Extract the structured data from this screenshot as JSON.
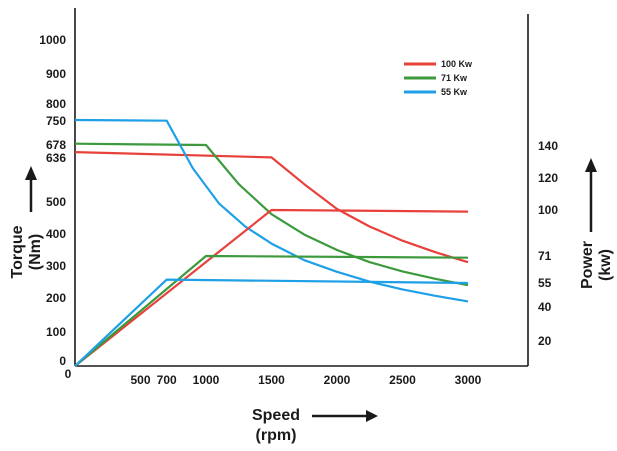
{
  "chart_data": {
    "type": "line",
    "xlabel": "Speed",
    "xlabel_unit": "(rpm)",
    "ylabel_left": "Torque",
    "ylabel_left_unit": "(Nm)",
    "ylabel_right": "Power",
    "ylabel_right_unit": "(kw)",
    "x_ticks": [
      "0",
      "500",
      "700",
      "1000",
      "1500",
      "2000",
      "2500",
      "3000"
    ],
    "x_tick_values": [
      0,
      500,
      700,
      1000,
      1500,
      2000,
      2500,
      3000
    ],
    "left_ticks": [
      "0",
      "100",
      "200",
      "300",
      "400",
      "500",
      "636",
      "678",
      "750",
      "800",
      "900",
      "1000"
    ],
    "left_tick_values": [
      0,
      100,
      200,
      300,
      400,
      500,
      636,
      678,
      750,
      800,
      900,
      1000
    ],
    "right_ticks": [
      "20",
      "40",
      "55",
      "71",
      "100",
      "120",
      "140"
    ],
    "right_tick_values": [
      20,
      40,
      55,
      71,
      100,
      120,
      140
    ],
    "legend_position": "top-right",
    "colors": {
      "100 Kw": "#e8403a",
      "71 Kw": "#3c9a3c",
      "55 Kw": "#1fa0e6"
    },
    "series": [
      {
        "name": "100 Kw",
        "axis": "torque",
        "x": [
          0,
          1500,
          1750,
          2000,
          2250,
          2500,
          2750,
          3000
        ],
        "y": [
          655,
          638,
          555,
          478,
          423,
          379,
          343,
          312
        ]
      },
      {
        "name": "71 Kw",
        "axis": "torque",
        "x": [
          0,
          1000,
          1250,
          1500,
          1750,
          2000,
          2250,
          2500,
          2750,
          3000
        ],
        "y": [
          682,
          678,
          555,
          462,
          398,
          350,
          312,
          283,
          260,
          240
        ]
      },
      {
        "name": "55 Kw",
        "axis": "torque",
        "x": [
          0,
          700,
          900,
          1100,
          1300,
          1500,
          1750,
          2000,
          2250,
          2500,
          2750,
          3000
        ],
        "y": [
          753,
          751,
          604,
          495,
          423,
          370,
          318,
          282,
          251,
          227,
          207,
          190
        ]
      },
      {
        "name": "100 Kw",
        "axis": "power",
        "x": [
          0,
          1500,
          3000
        ],
        "y": [
          0,
          100,
          99
        ]
      },
      {
        "name": "71 Kw",
        "axis": "power",
        "x": [
          0,
          1000,
          3000
        ],
        "y": [
          0,
          71,
          70
        ]
      },
      {
        "name": "55 Kw",
        "axis": "power",
        "x": [
          0,
          700,
          3000
        ],
        "y": [
          0,
          57,
          55
        ]
      }
    ]
  }
}
